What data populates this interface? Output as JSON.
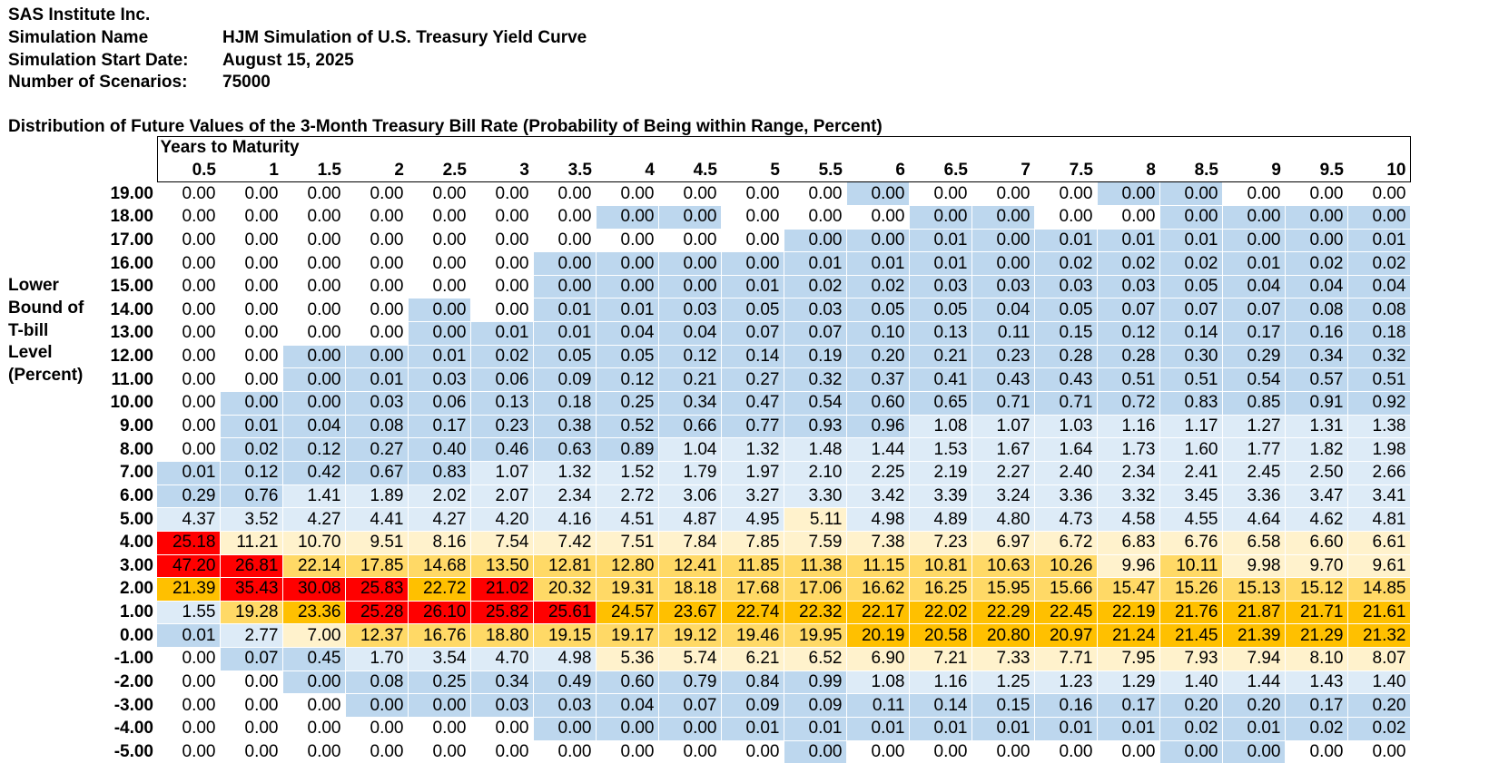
{
  "header": {
    "company": "SAS Institute Inc.",
    "sim_name_label": "Simulation Name",
    "sim_name_value": "HJM Simulation of U.S. Treasury Yield Curve",
    "start_date_label": "Simulation Start Date:",
    "start_date_value": "August 15, 2025",
    "scenarios_label": "Number of Scenarios:",
    "scenarios_value": "75000"
  },
  "table_title": "Distribution of Future Values of the 3-Month Treasury Bill Rate (Probability of Being within Range, Percent)",
  "column_group_label": "Years to Maturity",
  "side_label": [
    "Lower",
    "Bound of",
    "T-bill",
    "Level",
    "(Percent)"
  ],
  "colors": {
    "blue": "#bdd7ee",
    "lightblue": "#ddebf7",
    "white": "#ffffff",
    "cream": "#fff2cc",
    "yellow": "#ffd966",
    "orange": "#ffc000",
    "red": "#ff0000"
  },
  "columns": [
    "0.5",
    "1",
    "1.5",
    "2",
    "2.5",
    "3",
    "3.5",
    "4",
    "4.5",
    "5",
    "5.5",
    "6",
    "6.5",
    "7",
    "7.5",
    "8",
    "8.5",
    "9",
    "9.5",
    "10"
  ],
  "rows": [
    {
      "label": "19.00",
      "values": [
        "0.00",
        "0.00",
        "0.00",
        "0.00",
        "0.00",
        "0.00",
        "0.00",
        "0.00",
        "0.00",
        "0.00",
        "0.00",
        "0.00",
        "0.00",
        "0.00",
        "0.00",
        "0.00",
        "0.00",
        "0.00",
        "0.00",
        "0.00"
      ],
      "colors": "WWWWWWWWWWWBWWWBBWWW"
    },
    {
      "label": "18.00",
      "values": [
        "0.00",
        "0.00",
        "0.00",
        "0.00",
        "0.00",
        "0.00",
        "0.00",
        "0.00",
        "0.00",
        "0.00",
        "0.00",
        "0.00",
        "0.00",
        "0.00",
        "0.00",
        "0.00",
        "0.00",
        "0.00",
        "0.00",
        "0.00"
      ],
      "colors": "WWWWWWWBBWWWBBWWBBBB"
    },
    {
      "label": "17.00",
      "values": [
        "0.00",
        "0.00",
        "0.00",
        "0.00",
        "0.00",
        "0.00",
        "0.00",
        "0.00",
        "0.00",
        "0.00",
        "0.00",
        "0.00",
        "0.01",
        "0.00",
        "0.01",
        "0.01",
        "0.01",
        "0.00",
        "0.00",
        "0.01"
      ],
      "colors": "WWWWWWWWWWBBBBBBBBBB"
    },
    {
      "label": "16.00",
      "values": [
        "0.00",
        "0.00",
        "0.00",
        "0.00",
        "0.00",
        "0.00",
        "0.00",
        "0.00",
        "0.00",
        "0.00",
        "0.01",
        "0.01",
        "0.01",
        "0.00",
        "0.02",
        "0.02",
        "0.02",
        "0.01",
        "0.02",
        "0.02"
      ],
      "colors": "WWWWWWBBBBBBBBBBBBBB"
    },
    {
      "label": "15.00",
      "values": [
        "0.00",
        "0.00",
        "0.00",
        "0.00",
        "0.00",
        "0.00",
        "0.00",
        "0.00",
        "0.00",
        "0.01",
        "0.02",
        "0.02",
        "0.03",
        "0.03",
        "0.03",
        "0.03",
        "0.05",
        "0.04",
        "0.04",
        "0.04"
      ],
      "colors": "WWWWWWBBBBBBBBBBBBBB"
    },
    {
      "label": "14.00",
      "values": [
        "0.00",
        "0.00",
        "0.00",
        "0.00",
        "0.00",
        "0.00",
        "0.01",
        "0.01",
        "0.03",
        "0.05",
        "0.03",
        "0.05",
        "0.05",
        "0.04",
        "0.05",
        "0.07",
        "0.07",
        "0.07",
        "0.08",
        "0.08"
      ],
      "colors": "WWWWBWBBBBBBBBBBBBBB"
    },
    {
      "label": "13.00",
      "values": [
        "0.00",
        "0.00",
        "0.00",
        "0.00",
        "0.00",
        "0.01",
        "0.01",
        "0.04",
        "0.04",
        "0.07",
        "0.07",
        "0.10",
        "0.13",
        "0.11",
        "0.15",
        "0.12",
        "0.14",
        "0.17",
        "0.16",
        "0.18"
      ],
      "colors": "WWWWBBBBBBBBBBBBBBBB"
    },
    {
      "label": "12.00",
      "values": [
        "0.00",
        "0.00",
        "0.00",
        "0.00",
        "0.01",
        "0.02",
        "0.05",
        "0.05",
        "0.12",
        "0.14",
        "0.19",
        "0.20",
        "0.21",
        "0.23",
        "0.28",
        "0.28",
        "0.30",
        "0.29",
        "0.34",
        "0.32"
      ],
      "colors": "WWBBBBBBBBBBBBBBBBBB"
    },
    {
      "label": "11.00",
      "values": [
        "0.00",
        "0.00",
        "0.00",
        "0.01",
        "0.03",
        "0.06",
        "0.09",
        "0.12",
        "0.21",
        "0.27",
        "0.32",
        "0.37",
        "0.41",
        "0.43",
        "0.43",
        "0.51",
        "0.51",
        "0.54",
        "0.57",
        "0.51"
      ],
      "colors": "WWBBBBBBBBBBBBBBBBBB"
    },
    {
      "label": "10.00",
      "values": [
        "0.00",
        "0.00",
        "0.00",
        "0.03",
        "0.06",
        "0.13",
        "0.18",
        "0.25",
        "0.34",
        "0.47",
        "0.54",
        "0.60",
        "0.65",
        "0.71",
        "0.71",
        "0.72",
        "0.83",
        "0.85",
        "0.91",
        "0.92"
      ],
      "colors": "WBBBBBBBBBBBBBBBBBBB"
    },
    {
      "label": "9.00",
      "values": [
        "0.00",
        "0.01",
        "0.04",
        "0.08",
        "0.17",
        "0.23",
        "0.38",
        "0.52",
        "0.66",
        "0.77",
        "0.93",
        "0.96",
        "1.08",
        "1.07",
        "1.03",
        "1.16",
        "1.17",
        "1.27",
        "1.31",
        "1.38"
      ],
      "colors": "WBBBBBBBBBBBLLLLLLLL"
    },
    {
      "label": "8.00",
      "values": [
        "0.00",
        "0.02",
        "0.12",
        "0.27",
        "0.40",
        "0.46",
        "0.63",
        "0.89",
        "1.04",
        "1.32",
        "1.48",
        "1.44",
        "1.53",
        "1.67",
        "1.64",
        "1.73",
        "1.60",
        "1.77",
        "1.82",
        "1.98"
      ],
      "colors": "WBBBBBBBLLLLLLLLLLLL"
    },
    {
      "label": "7.00",
      "values": [
        "0.01",
        "0.12",
        "0.42",
        "0.67",
        "0.83",
        "1.07",
        "1.32",
        "1.52",
        "1.79",
        "1.97",
        "2.10",
        "2.25",
        "2.19",
        "2.27",
        "2.40",
        "2.34",
        "2.41",
        "2.45",
        "2.50",
        "2.66"
      ],
      "colors": "BBBBBLLLLLLLLLLLLLLL"
    },
    {
      "label": "6.00",
      "values": [
        "0.29",
        "0.76",
        "1.41",
        "1.89",
        "2.02",
        "2.07",
        "2.34",
        "2.72",
        "3.06",
        "3.27",
        "3.30",
        "3.42",
        "3.39",
        "3.24",
        "3.36",
        "3.32",
        "3.45",
        "3.36",
        "3.47",
        "3.41"
      ],
      "colors": "BBLLLLLLLLLLLLLLLLLL"
    },
    {
      "label": "5.00",
      "values": [
        "4.37",
        "3.52",
        "4.27",
        "4.41",
        "4.27",
        "4.20",
        "4.16",
        "4.51",
        "4.87",
        "4.95",
        "5.11",
        "4.98",
        "4.89",
        "4.80",
        "4.73",
        "4.58",
        "4.55",
        "4.64",
        "4.62",
        "4.81"
      ],
      "colors": "LLLLLLLLLLCLLLLLLLLL"
    },
    {
      "label": "4.00",
      "values": [
        "25.18",
        "11.21",
        "10.70",
        "9.51",
        "8.16",
        "7.54",
        "7.42",
        "7.51",
        "7.84",
        "7.85",
        "7.59",
        "7.38",
        "7.23",
        "6.97",
        "6.72",
        "6.83",
        "6.76",
        "6.58",
        "6.60",
        "6.61"
      ],
      "colors": "RCCCCCCCCCCCCCCCCCCC"
    },
    {
      "label": "3.00",
      "values": [
        "47.20",
        "26.81",
        "22.14",
        "17.85",
        "14.68",
        "13.50",
        "12.81",
        "12.80",
        "12.41",
        "11.85",
        "11.38",
        "11.15",
        "10.81",
        "10.63",
        "10.26",
        "9.96",
        "10.11",
        "9.98",
        "9.70",
        "9.61"
      ],
      "colors": "RRYYYYYYYYYYYYYCYCCC"
    },
    {
      "label": "2.00",
      "values": [
        "21.39",
        "35.43",
        "30.08",
        "25.83",
        "22.72",
        "21.02",
        "20.32",
        "19.31",
        "18.18",
        "17.68",
        "17.06",
        "16.62",
        "16.25",
        "15.95",
        "15.66",
        "15.47",
        "15.26",
        "15.13",
        "15.12",
        "14.85"
      ],
      "colors": "ORRRORYYYYYYYYYYYYYY"
    },
    {
      "label": "1.00",
      "values": [
        "1.55",
        "19.28",
        "23.36",
        "25.28",
        "26.10",
        "25.82",
        "25.61",
        "24.57",
        "23.67",
        "22.74",
        "22.32",
        "22.17",
        "22.02",
        "22.29",
        "22.45",
        "22.19",
        "21.76",
        "21.87",
        "21.71",
        "21.61"
      ],
      "colors": "LYORRRROOOOOOOOOOOOO"
    },
    {
      "label": "0.00",
      "values": [
        "0.01",
        "2.77",
        "7.00",
        "12.37",
        "16.76",
        "18.80",
        "19.15",
        "19.17",
        "19.12",
        "19.46",
        "19.95",
        "20.19",
        "20.58",
        "20.80",
        "20.97",
        "21.24",
        "21.45",
        "21.39",
        "21.29",
        "21.32"
      ],
      "colors": "BLCYYYYYYYYOOOOOOOOO"
    },
    {
      "label": "-1.00",
      "values": [
        "0.00",
        "0.07",
        "0.45",
        "1.70",
        "3.54",
        "4.70",
        "4.98",
        "5.36",
        "5.74",
        "6.21",
        "6.52",
        "6.90",
        "7.21",
        "7.33",
        "7.71",
        "7.95",
        "7.93",
        "7.94",
        "8.10",
        "8.07"
      ],
      "colors": "WBBLLLLCCCCCCCCCCCCC"
    },
    {
      "label": "-2.00",
      "values": [
        "0.00",
        "0.00",
        "0.00",
        "0.08",
        "0.25",
        "0.34",
        "0.49",
        "0.60",
        "0.79",
        "0.84",
        "0.99",
        "1.08",
        "1.16",
        "1.25",
        "1.23",
        "1.29",
        "1.40",
        "1.44",
        "1.43",
        "1.40"
      ],
      "colors": "WWBBBBBBBBBLLLLLLLLL"
    },
    {
      "label": "-3.00",
      "values": [
        "0.00",
        "0.00",
        "0.00",
        "0.00",
        "0.00",
        "0.03",
        "0.03",
        "0.04",
        "0.07",
        "0.09",
        "0.09",
        "0.11",
        "0.14",
        "0.15",
        "0.16",
        "0.17",
        "0.20",
        "0.20",
        "0.17",
        "0.20"
      ],
      "colors": "WWWBBBBBBBBBBBBBBBBB"
    },
    {
      "label": "-4.00",
      "values": [
        "0.00",
        "0.00",
        "0.00",
        "0.00",
        "0.00",
        "0.00",
        "0.00",
        "0.00",
        "0.00",
        "0.01",
        "0.01",
        "0.01",
        "0.01",
        "0.01",
        "0.01",
        "0.01",
        "0.02",
        "0.01",
        "0.02",
        "0.02"
      ],
      "colors": "WWWWWWBBBBBBBBBBBBBB"
    },
    {
      "label": "-5.00",
      "values": [
        "0.00",
        "0.00",
        "0.00",
        "0.00",
        "0.00",
        "0.00",
        "0.00",
        "0.00",
        "0.00",
        "0.00",
        "0.00",
        "0.00",
        "0.00",
        "0.00",
        "0.00",
        "0.00",
        "0.00",
        "0.00",
        "0.00",
        "0.00"
      ],
      "colors": "WWWWWWWWWWBWWWWWBBWW"
    }
  ]
}
